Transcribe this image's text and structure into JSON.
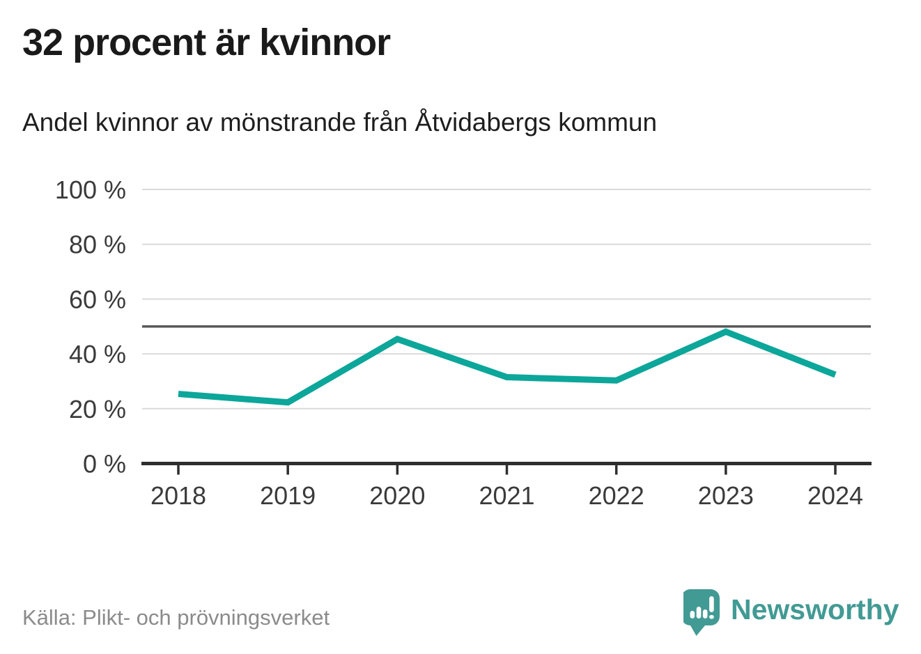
{
  "chart_data": {
    "type": "line",
    "title": "32 procent är kvinnor",
    "subtitle": "Andel kvinnor av mönstrande från Åtvidabergs kommun",
    "categories": [
      "2018",
      "2019",
      "2020",
      "2021",
      "2022",
      "2023",
      "2024"
    ],
    "series": [
      {
        "name": "Andel kvinnor",
        "values": [
          25.4,
          22.3,
          45.4,
          31.5,
          30.3,
          48.1,
          32.4
        ]
      }
    ],
    "xlabel": "",
    "ylabel": "",
    "ylim": [
      0,
      100
    ],
    "yticks": [
      {
        "value": 100,
        "label": "100 %"
      },
      {
        "value": 80,
        "label": "80 %"
      },
      {
        "value": 60,
        "label": "60 %"
      },
      {
        "value": 40,
        "label": "40 %"
      },
      {
        "value": 20,
        "label": "20 %"
      },
      {
        "value": 0,
        "label": "0 %"
      }
    ],
    "reference_line": {
      "value": 50
    },
    "grid": "horizontal",
    "legend": "none",
    "markers": false
  },
  "footer": {
    "source": "Källa: Plikt- och prövningsverket",
    "brand": "Newsworthy"
  },
  "colors": {
    "line": "#0ca69a",
    "gridline": "#dadada",
    "reference_line": "#595959",
    "axis": "#2e2e2e",
    "tick_text": "#3a3a3a",
    "title_text": "#1a1a1a",
    "source_text": "#8b8b8b",
    "brand_teal": "#429a94"
  }
}
